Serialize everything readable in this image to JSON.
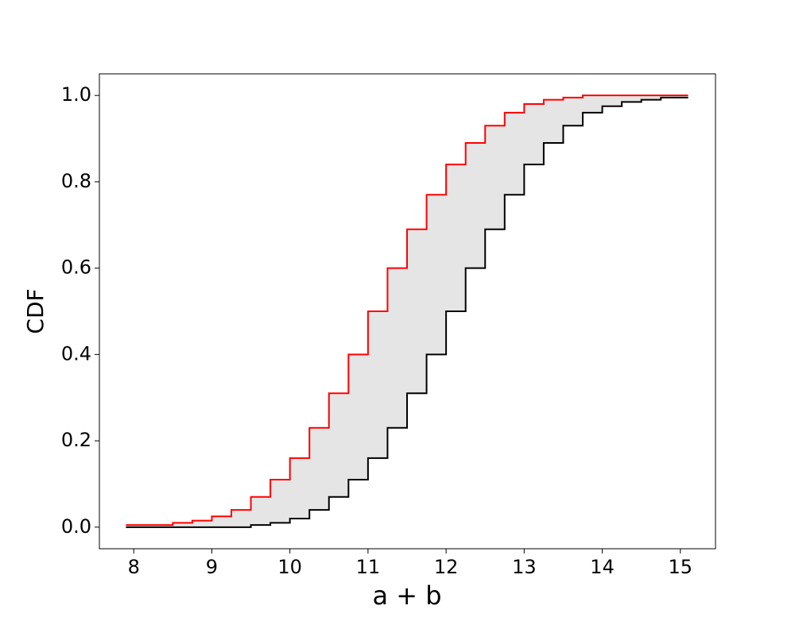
{
  "chart_data": {
    "type": "step-band",
    "xlabel": "a + b",
    "ylabel": "CDF",
    "x": [
      7.9,
      8.25,
      8.5,
      8.75,
      9,
      9.25,
      9.5,
      9.75,
      10,
      10.25,
      10.5,
      10.75,
      11,
      11.25,
      11.5,
      11.75,
      12,
      12.25,
      12.5,
      12.75,
      13,
      13.25,
      13.5,
      13.75,
      14,
      14.25,
      14.5,
      14.75,
      15,
      15.1
    ],
    "series": [
      {
        "color": "#ff0000",
        "values": [
          0.005,
          0.005,
          0.01,
          0.015,
          0.025,
          0.04,
          0.07,
          0.11,
          0.16,
          0.23,
          0.31,
          0.4,
          0.5,
          0.6,
          0.69,
          0.77,
          0.84,
          0.89,
          0.93,
          0.96,
          0.98,
          0.99,
          0.995,
          1,
          1,
          1,
          1,
          1,
          1,
          1
        ]
      },
      {
        "color": "#000000",
        "values": [
          0,
          0,
          0,
          0,
          0,
          0,
          0.005,
          0.01,
          0.02,
          0.04,
          0.07,
          0.11,
          0.16,
          0.23,
          0.31,
          0.4,
          0.5,
          0.6,
          0.69,
          0.77,
          0.84,
          0.89,
          0.93,
          0.96,
          0.975,
          0.985,
          0.99,
          0.995,
          0.995,
          0.995
        ]
      }
    ],
    "fill_color": "#e5e5e5",
    "xlim": [
      7.56,
      15.45
    ],
    "xticks": [
      8,
      9,
      10,
      11,
      12,
      13,
      14,
      15
    ],
    "ylim": [
      -0.05,
      1.05
    ],
    "yticks": [
      {
        "value": 0,
        "label": "0.0"
      },
      0.2,
      0.4,
      0.6,
      0.8,
      {
        "value": 1,
        "label": "1.0"
      }
    ],
    "grid": false
  }
}
